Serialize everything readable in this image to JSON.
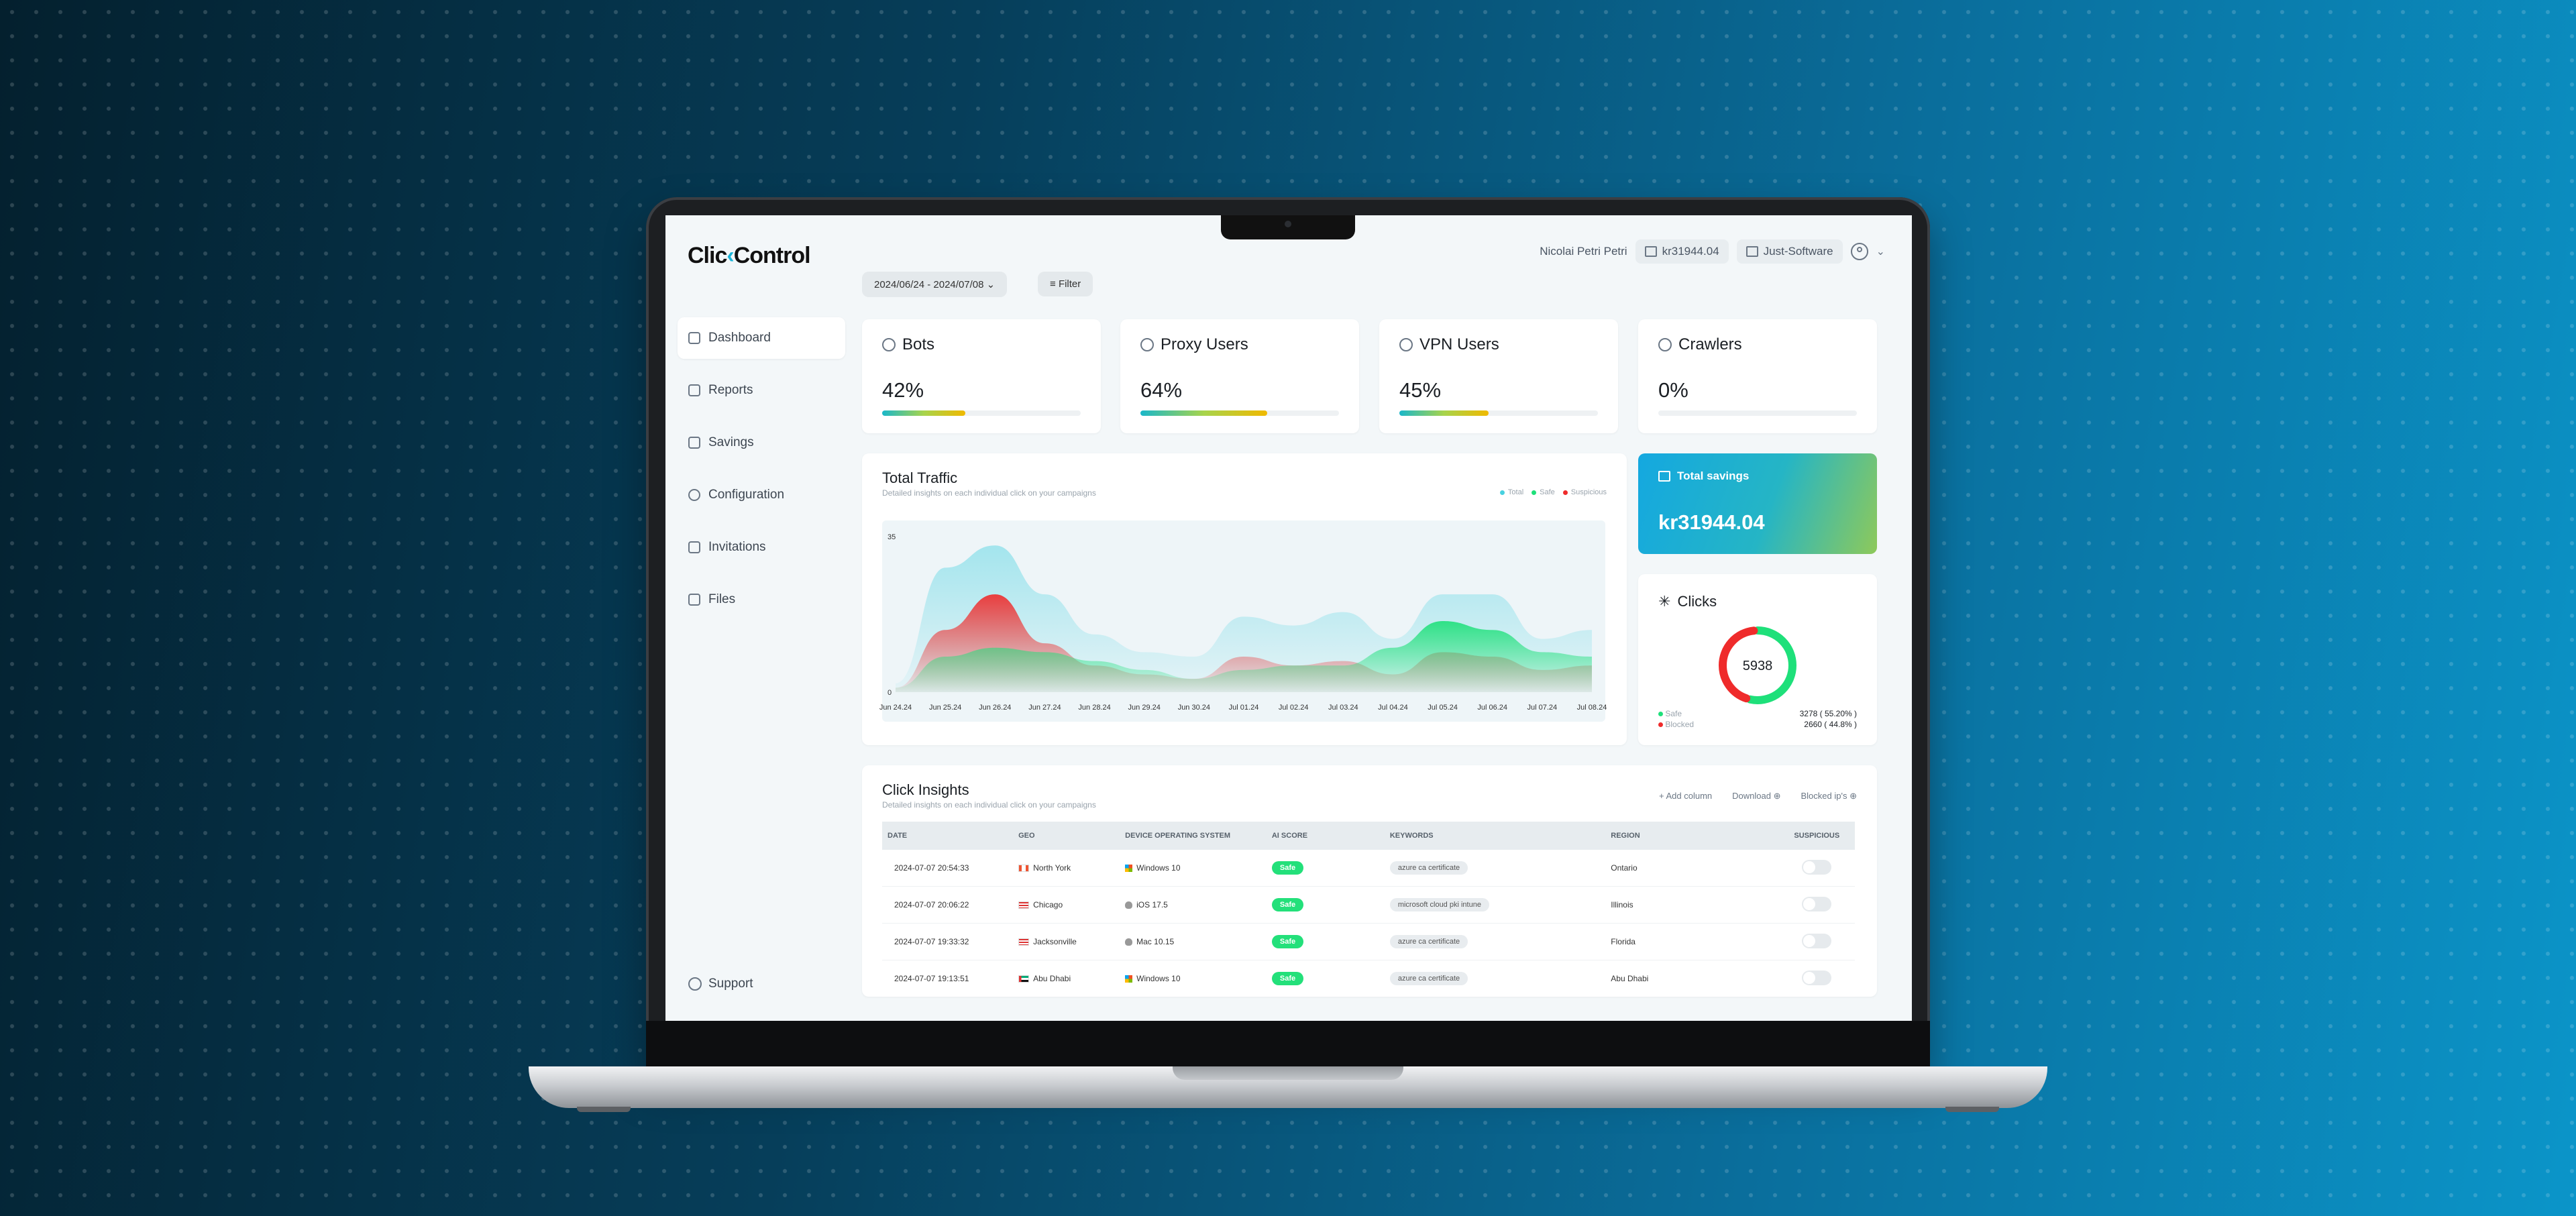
{
  "app": {
    "logo_prefix": "Clic",
    "logo_arrow": "‹",
    "logo_suffix": "Control"
  },
  "header": {
    "user_name": "Nicolai Petri Petri",
    "balance": "kr31944.04",
    "company": "Just-Software"
  },
  "filters": {
    "date_range": "2024/06/24 - 2024/07/08",
    "filter_label": "Filter"
  },
  "sidebar": {
    "items": [
      {
        "label": "Dashboard",
        "icon": "grid-icon"
      },
      {
        "label": "Reports",
        "icon": "bar-chart-icon"
      },
      {
        "label": "Savings",
        "icon": "wallet-icon"
      },
      {
        "label": "Configuration",
        "icon": "gear-icon"
      },
      {
        "label": "Invitations",
        "icon": "user-plus-icon"
      },
      {
        "label": "Files",
        "icon": "file-icon"
      }
    ],
    "support_label": "Support"
  },
  "stats": [
    {
      "label": "Bots",
      "value": "42%",
      "fraction": 0.42
    },
    {
      "label": "Proxy Users",
      "value": "64%",
      "fraction": 0.64
    },
    {
      "label": "VPN Users",
      "value": "45%",
      "fraction": 0.45
    },
    {
      "label": "Crawlers",
      "value": "0%",
      "fraction": 0.0
    }
  ],
  "traffic": {
    "title": "Total Traffic",
    "subtitle": "Detailed insights on each individual click on your campaigns",
    "legend": [
      "Total",
      "Safe",
      "Suspicious"
    ],
    "colors": {
      "total": "#48d1e0",
      "safe": "#1ee07a",
      "suspicious": "#ef2b2b"
    }
  },
  "chart_data": {
    "type": "area",
    "x": [
      "Jun 24.24",
      "Jun 25.24",
      "Jun 26.24",
      "Jun 27.24",
      "Jun 28.24",
      "Jun 29.24",
      "Jun 30.24",
      "Jul 01.24",
      "Jul 02.24",
      "Jul 03.24",
      "Jul 04.24",
      "Jul 05.24",
      "Jul 06.24",
      "Jul 07.24",
      "Jul 08.24"
    ],
    "ylim": [
      0,
      35
    ],
    "yticks": [
      "35",
      "0"
    ],
    "series": [
      {
        "name": "Total",
        "values": [
          2,
          28,
          33,
          22,
          13,
          9,
          8,
          17,
          15,
          18,
          12,
          22,
          22,
          12,
          14
        ]
      },
      {
        "name": "Suspicious",
        "values": [
          1,
          14,
          22,
          11,
          6,
          4,
          3,
          8,
          6,
          7,
          4,
          9,
          8,
          5,
          6
        ]
      },
      {
        "name": "Safe",
        "values": [
          1,
          8,
          10,
          9,
          7,
          5,
          3,
          5,
          6,
          6,
          10,
          16,
          14,
          9,
          8
        ]
      }
    ]
  },
  "savings": {
    "label": "Total savings",
    "amount": "kr31944.04"
  },
  "clicks": {
    "title": "Clicks",
    "total": "5938",
    "safe_label": "Safe",
    "safe_value": "3278 ( 55.20% )",
    "safe_fraction": 0.552,
    "blocked_label": "Blocked",
    "blocked_value": "2660 ( 44.8% )",
    "safe_color": "#1ee07a",
    "blocked_color": "#ef2b2b"
  },
  "insights": {
    "title": "Click Insights",
    "subtitle": "Detailed insights on each individual click on your campaigns",
    "add_column": "+ Add column",
    "download": "Download",
    "blocked_ips": "Blocked ip's",
    "columns": [
      "DATE",
      "GEO",
      "DEVICE OPERATING SYSTEM",
      "AI SCORE",
      "KEYWORDS",
      "REGION",
      "SUSPICIOUS"
    ],
    "rows": [
      {
        "date": "2024-07-07 20:54:33",
        "geo": "North York",
        "flag": "ca",
        "os": "Windows 10",
        "os_icon": "windows-icon",
        "score": "Safe",
        "keyword": "azure ca certificate",
        "region": "Ontario"
      },
      {
        "date": "2024-07-07 20:06:22",
        "geo": "Chicago",
        "flag": "us",
        "os": "iOS 17.5",
        "os_icon": "apple-icon",
        "score": "Safe",
        "keyword": "microsoft cloud pki intune",
        "region": "Illinois"
      },
      {
        "date": "2024-07-07 19:33:32",
        "geo": "Jacksonville",
        "flag": "us",
        "os": "Mac 10.15",
        "os_icon": "apple-icon",
        "score": "Safe",
        "keyword": "azure ca certificate",
        "region": "Florida"
      },
      {
        "date": "2024-07-07 19:13:51",
        "geo": "Abu Dhabi",
        "flag": "ae",
        "os": "Windows 10",
        "os_icon": "windows-icon",
        "score": "Safe",
        "keyword": "azure ca certificate",
        "region": "Abu Dhabi"
      }
    ]
  }
}
